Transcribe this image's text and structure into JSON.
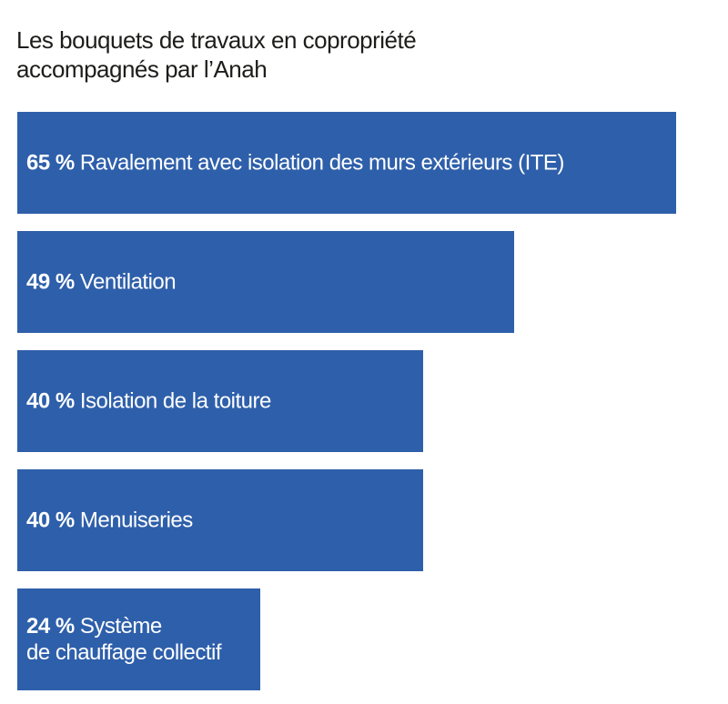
{
  "title": {
    "line1": "Les bouquets de travaux en copropriété",
    "line2": "accompagnés par l’Anah"
  },
  "chart_data": {
    "type": "bar",
    "orientation": "horizontal",
    "title": "Les bouquets de travaux en copropriété accompagnés par l’Anah",
    "unit": "%",
    "bar_color": "#2e5faa",
    "categories": [
      "Ravalement avec isolation des murs extérieurs (ITE)",
      "Ventilation",
      "Isolation de la toiture",
      "Menuiseries",
      "Système de chauffage collectif"
    ],
    "values": [
      65,
      49,
      40,
      40,
      24
    ],
    "labels": [
      {
        "pct": "65 %",
        "lines": [
          "Ravalement avec isolation des murs extérieurs (ITE)"
        ]
      },
      {
        "pct": "49 %",
        "lines": [
          "Ventilation"
        ]
      },
      {
        "pct": "40 %",
        "lines": [
          "Isolation de la toiture"
        ]
      },
      {
        "pct": "40 %",
        "lines": [
          "Menuiseries"
        ]
      },
      {
        "pct": "24 %",
        "lines": [
          "Système",
          "de chauffage collectif"
        ]
      }
    ]
  }
}
